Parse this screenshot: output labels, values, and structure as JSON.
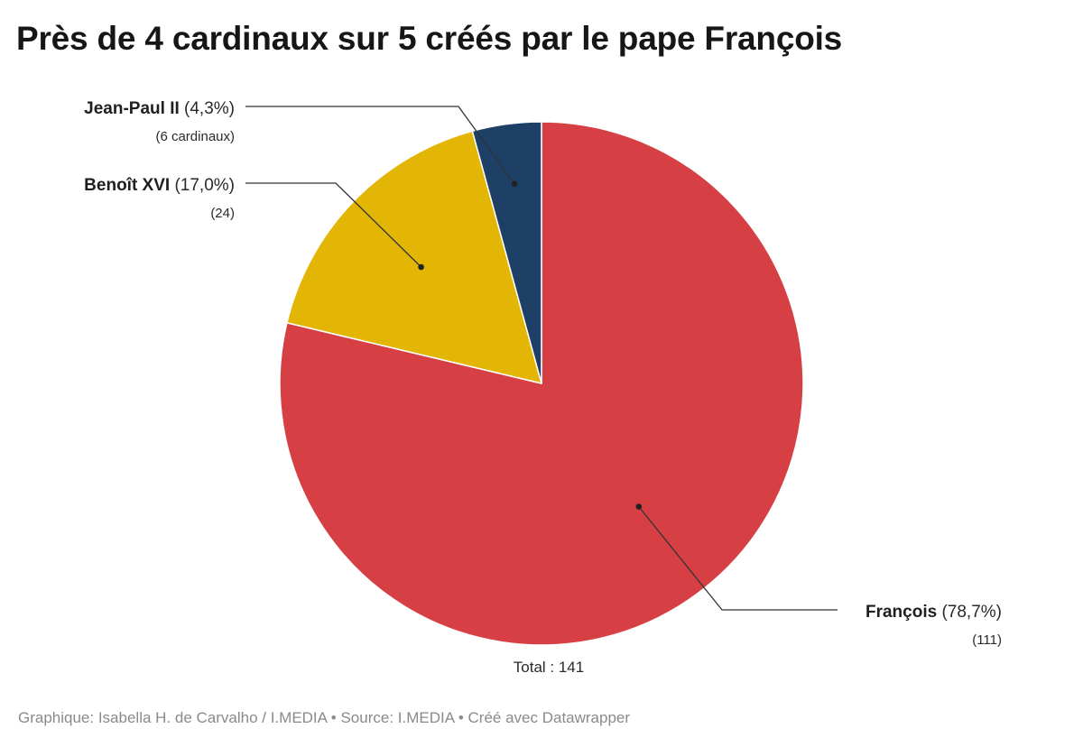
{
  "chart_data": {
    "type": "pie",
    "title": "Près de 4 cardinaux sur 5 créés par le pape François",
    "slices": [
      {
        "name": "François",
        "value": 111,
        "percent_label": "(78,7%)",
        "count_label": "(111)",
        "color": "#d64045"
      },
      {
        "name": "Benoît XVI",
        "value": 24,
        "percent_label": "(17,0%)",
        "count_label": "(24)",
        "color": "#e3b505"
      },
      {
        "name": "Jean-Paul II",
        "value": 6,
        "percent_label": "(4,3%)",
        "count_label": "(6 cardinaux)",
        "color": "#1e3f66"
      }
    ],
    "total_label": "Total : 141",
    "start_angle": "12 o'clock",
    "direction": "clockwise"
  },
  "footer": "Graphique: Isabella H. de Carvalho / I.MEDIA • Source: I.MEDIA • Créé avec Datawrapper"
}
